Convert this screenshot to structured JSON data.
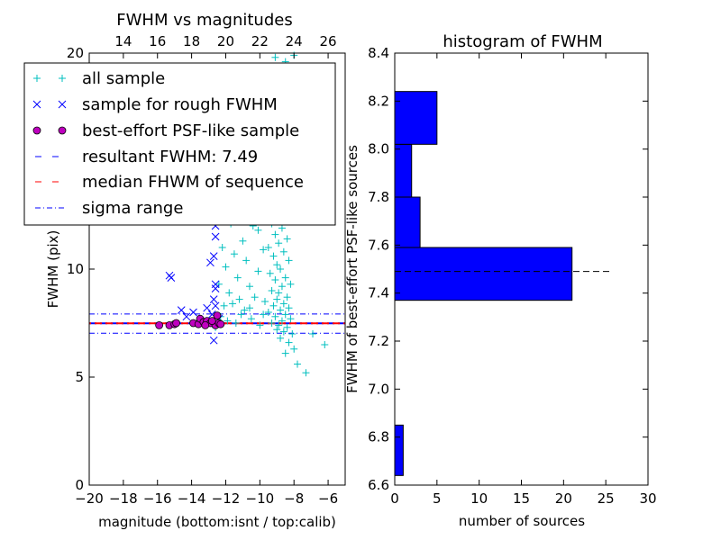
{
  "chart_data": [
    {
      "type": "scatter",
      "title": "FWHM vs magnitudes",
      "xlabel": "magnitude (bottom:isnt / top:calib)",
      "ylabel": "FWHM (pix)",
      "xlim": [
        -20,
        -5
      ],
      "ylim": [
        0,
        20
      ],
      "x_ticks": [
        "−20",
        "−18",
        "−16",
        "−14",
        "−12",
        "−10",
        "−8",
        "−6"
      ],
      "y_ticks": [
        "0",
        "5",
        "10",
        "15",
        "20"
      ],
      "top_axis": {
        "ticks": [
          "14",
          "16",
          "18",
          "20",
          "22",
          "24",
          "26"
        ],
        "offset": 32
      },
      "grid": false,
      "legend": {
        "placement": "top-left",
        "entries": [
          "all sample",
          "sample for rough FWHM",
          "best-effort PSF-like sample",
          "resultant FWHM: 7.49",
          "median FHWM of sequence",
          "sigma range"
        ]
      },
      "colors": {
        "all_sample": "#00bfbf",
        "rough": "#0000ff",
        "best": "#bf00bf",
        "resultant": "#0000ff",
        "median": "#ff0000",
        "sigma": "#0000ff"
      },
      "lines": {
        "resultant_fwhm": 7.49,
        "median_fwhm": 7.49,
        "sigma_range": [
          7.03,
          7.92
        ]
      },
      "series": [
        {
          "name": "all sample",
          "marker": "+",
          "points": [
            [
              -8.0,
              19.9
            ],
            [
              -8.5,
              19.6
            ],
            [
              -9.1,
              19.8
            ],
            [
              -8.7,
              18.5
            ],
            [
              -9.3,
              17.6
            ],
            [
              -8.2,
              17.2
            ],
            [
              -8.6,
              16.4
            ],
            [
              -9.0,
              15.9
            ],
            [
              -8.4,
              15.3
            ],
            [
              -9.2,
              14.8
            ],
            [
              -8.8,
              14.2
            ],
            [
              -9.6,
              13.9
            ],
            [
              -8.3,
              13.5
            ],
            [
              -9.4,
              13.2
            ],
            [
              -8.9,
              12.9
            ],
            [
              -9.0,
              12.5
            ],
            [
              -8.5,
              12.3
            ],
            [
              -9.3,
              12.1
            ],
            [
              -8.7,
              11.9
            ],
            [
              -9.1,
              11.6
            ],
            [
              -8.4,
              11.4
            ],
            [
              -8.9,
              11.2
            ],
            [
              -9.5,
              11.0
            ],
            [
              -8.6,
              10.8
            ],
            [
              -9.2,
              10.6
            ],
            [
              -8.3,
              10.4
            ],
            [
              -9.0,
              10.2
            ],
            [
              -8.8,
              10.0
            ],
            [
              -9.4,
              9.8
            ],
            [
              -8.5,
              9.6
            ],
            [
              -9.1,
              9.5
            ],
            [
              -8.2,
              9.3
            ],
            [
              -8.7,
              9.2
            ],
            [
              -9.3,
              9.0
            ],
            [
              -8.9,
              8.9
            ],
            [
              -8.4,
              8.7
            ],
            [
              -9.0,
              8.6
            ],
            [
              -8.6,
              8.4
            ],
            [
              -9.2,
              8.3
            ],
            [
              -8.3,
              8.2
            ],
            [
              -8.8,
              8.1
            ],
            [
              -9.5,
              8.0
            ],
            [
              -8.5,
              7.9
            ],
            [
              -9.1,
              7.8
            ],
            [
              -8.2,
              7.7
            ],
            [
              -8.7,
              7.6
            ],
            [
              -9.3,
              7.5
            ],
            [
              -8.9,
              7.4
            ],
            [
              -8.4,
              7.3
            ],
            [
              -9.0,
              7.2
            ],
            [
              -8.6,
              7.1
            ],
            [
              -8.1,
              7.0
            ],
            [
              -8.8,
              6.8
            ],
            [
              -8.3,
              6.6
            ],
            [
              -8.0,
              6.3
            ],
            [
              -8.5,
              6.1
            ],
            [
              -7.8,
              5.6
            ],
            [
              -7.3,
              5.2
            ],
            [
              -6.2,
              6.5
            ],
            [
              -6.9,
              7.0
            ],
            [
              -8.9,
              16.8
            ],
            [
              -9.1,
              16.2
            ],
            [
              -8.6,
              15.6
            ],
            [
              -8.2,
              14.6
            ],
            [
              -9.3,
              14.1
            ],
            [
              -9.7,
              12.7
            ],
            [
              -9.8,
              10.9
            ],
            [
              -10.1,
              9.9
            ],
            [
              -10.3,
              8.7
            ],
            [
              -10.6,
              9.2
            ],
            [
              -10.8,
              10.4
            ],
            [
              -11.0,
              11.3
            ],
            [
              -10.4,
              12.0
            ],
            [
              -11.3,
              9.6
            ],
            [
              -11.6,
              8.4
            ],
            [
              -11.1,
              7.9
            ],
            [
              -10.9,
              8.1
            ],
            [
              -11.8,
              8.9
            ],
            [
              -12.0,
              10.1
            ],
            [
              -12.2,
              11.0
            ],
            [
              -12.4,
              9.3
            ],
            [
              -11.5,
              10.7
            ],
            [
              -10.7,
              13.2
            ],
            [
              -10.2,
              13.8
            ],
            [
              -9.9,
              14.6
            ],
            [
              -9.6,
              15.4
            ],
            [
              -11.7,
              12.1
            ],
            [
              -11.9,
              7.6
            ],
            [
              -12.3,
              7.8
            ],
            [
              -12.6,
              7.3
            ],
            [
              -10.5,
              7.7
            ],
            [
              -10.0,
              7.4
            ],
            [
              -9.8,
              7.9
            ],
            [
              -11.4,
              7.5
            ],
            [
              -12.1,
              8.3
            ],
            [
              -10.6,
              8.2
            ],
            [
              -9.7,
              8.5
            ],
            [
              -11.2,
              8.6
            ],
            [
              -10.1,
              11.8
            ],
            [
              -9.5,
              12.6
            ]
          ]
        },
        {
          "name": "sample for rough FWHM",
          "marker": "x",
          "points": [
            [
              -15.3,
              9.7
            ],
            [
              -15.2,
              9.6
            ],
            [
              -12.6,
              11.5
            ],
            [
              -12.6,
              12.0
            ],
            [
              -12.6,
              12.8
            ],
            [
              -12.6,
              13.3
            ],
            [
              -12.7,
              10.6
            ],
            [
              -12.6,
              9.3
            ],
            [
              -12.6,
              9.1
            ],
            [
              -12.7,
              8.6
            ],
            [
              -12.6,
              8.3
            ],
            [
              -12.8,
              7.9
            ],
            [
              -12.7,
              6.7
            ],
            [
              -12.9,
              10.3
            ],
            [
              -14.6,
              8.1
            ],
            [
              -14.3,
              7.8
            ],
            [
              -13.9,
              8.0
            ],
            [
              -13.1,
              8.2
            ],
            [
              -13.5,
              7.6
            ],
            [
              -12.4,
              7.7
            ]
          ]
        },
        {
          "name": "best-effort PSF-like sample",
          "marker": "o",
          "points": [
            [
              -15.9,
              7.4
            ],
            [
              -15.3,
              7.4
            ],
            [
              -15.0,
              7.45
            ],
            [
              -14.9,
              7.5
            ],
            [
              -13.9,
              7.5
            ],
            [
              -13.6,
              7.45
            ],
            [
              -13.5,
              7.7
            ],
            [
              -13.3,
              7.55
            ],
            [
              -13.1,
              7.6
            ],
            [
              -12.9,
              7.5
            ],
            [
              -12.6,
              7.4
            ],
            [
              -12.5,
              7.85
            ],
            [
              -12.4,
              7.5
            ],
            [
              -12.3,
              7.45
            ],
            [
              -12.8,
              7.6
            ],
            [
              -13.2,
              7.4
            ]
          ]
        }
      ]
    },
    {
      "type": "bar",
      "orientation": "horizontal",
      "title": "histogram of FWHM",
      "xlabel": "number of sources",
      "ylabel": "FWHM of best-effort PSF-like sources",
      "xlim": [
        0,
        30
      ],
      "ylim": [
        6.6,
        8.4
      ],
      "x_ticks": [
        "0",
        "5",
        "10",
        "15",
        "20",
        "25",
        "30"
      ],
      "y_ticks": [
        "6.6",
        "6.8",
        "7.0",
        "7.2",
        "7.4",
        "7.6",
        "7.8",
        "8.0",
        "8.2",
        "8.4"
      ],
      "bar_color": "#0000ff",
      "bins": [
        {
          "from": 6.64,
          "to": 6.85,
          "count": 1
        },
        {
          "from": 6.85,
          "to": 7.06,
          "count": 0
        },
        {
          "from": 7.06,
          "to": 7.27,
          "count": 0
        },
        {
          "from": 7.37,
          "to": 7.59,
          "count": 21
        },
        {
          "from": 7.59,
          "to": 7.8,
          "count": 3
        },
        {
          "from": 7.8,
          "to": 8.02,
          "count": 2
        },
        {
          "from": 8.02,
          "to": 8.24,
          "count": 5
        }
      ],
      "reference_line": {
        "y": 7.49,
        "to_count": 25.5,
        "color": "#000000"
      }
    }
  ]
}
